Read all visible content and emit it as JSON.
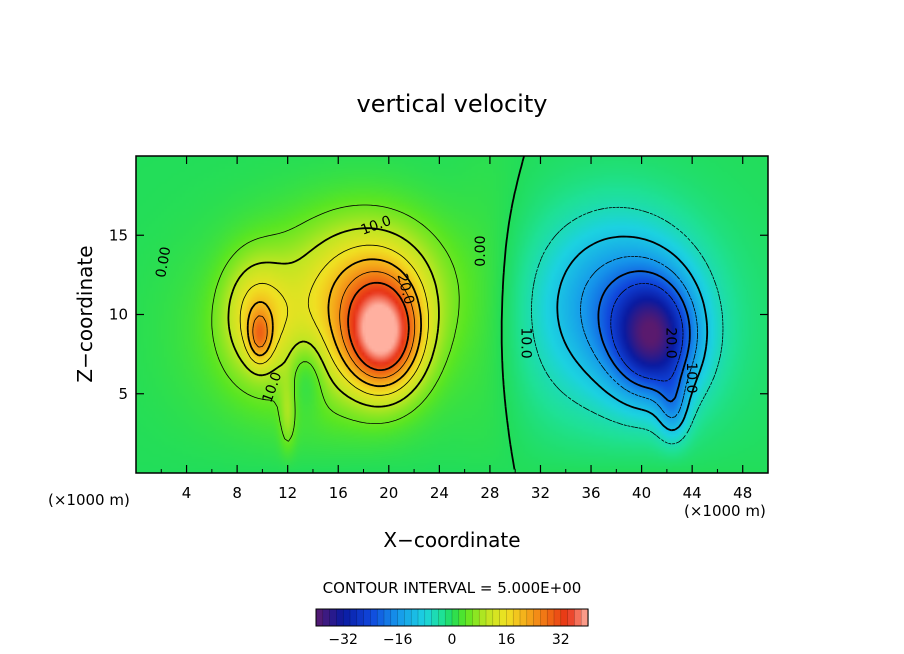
{
  "chart_data": {
    "type": "heatmap",
    "title": "vertical velocity",
    "xlabel": "X−coordinate",
    "ylabel": "Z−coordinate",
    "x_unit_left": "(×1000 m)",
    "x_unit_right": "(×1000 m)",
    "xlim": [
      0,
      50
    ],
    "ylim": [
      0,
      20
    ],
    "x_ticks": [
      {
        "value": 4,
        "label": "4"
      },
      {
        "value": 8,
        "label": "8"
      },
      {
        "value": 12,
        "label": "12"
      },
      {
        "value": 16,
        "label": "16"
      },
      {
        "value": 20,
        "label": "20"
      },
      {
        "value": 24,
        "label": "24"
      },
      {
        "value": 28,
        "label": "28"
      },
      {
        "value": 32,
        "label": "32"
      },
      {
        "value": 36,
        "label": "36"
      },
      {
        "value": 40,
        "label": "40"
      },
      {
        "value": 44,
        "label": "44"
      },
      {
        "value": 48,
        "label": "48"
      }
    ],
    "y_ticks": [
      {
        "value": 5,
        "label": "5"
      },
      {
        "value": 10,
        "label": "10"
      },
      {
        "value": 15,
        "label": "15"
      }
    ],
    "contour_interval_text": "CONTOUR INTERVAL = 5.000E+00",
    "contour_interval": 5,
    "contour_labels": [
      {
        "text": "0.00",
        "x": 2.2,
        "y": 13.3,
        "angle": -80
      },
      {
        "text": "0.00",
        "x": 27.3,
        "y": 14.0,
        "angle": -90
      },
      {
        "text": "10.0",
        "x": 19.0,
        "y": 15.6,
        "angle": -20
      },
      {
        "text": "20.0",
        "x": 21.3,
        "y": 11.6,
        "angle": 75
      },
      {
        "text": "10.0",
        "x": 10.8,
        "y": 5.4,
        "angle": -70
      },
      {
        "text": "10.0",
        "x": 30.8,
        "y": 8.2,
        "angle": 90
      },
      {
        "text": "20.0",
        "x": 42.3,
        "y": 8.2,
        "angle": 90
      },
      {
        "text": "10.0",
        "x": 43.9,
        "y": 6.0,
        "angle": 90
      }
    ],
    "field_features": [
      {
        "name": "main updraft",
        "x": 19.5,
        "z": 8.5,
        "peak": 32
      },
      {
        "name": "secondary updraft",
        "x": 9.8,
        "z": 8.8,
        "peak": 24
      },
      {
        "name": "downdraft",
        "x": 41.5,
        "z": 8.5,
        "peak": -30
      }
    ],
    "colorbar": {
      "min": -40,
      "max": 40,
      "tick_values": [
        -32,
        -16,
        0,
        16,
        32
      ],
      "tick_labels": [
        "−32",
        "−16",
        "0",
        "16",
        "32"
      ]
    }
  }
}
